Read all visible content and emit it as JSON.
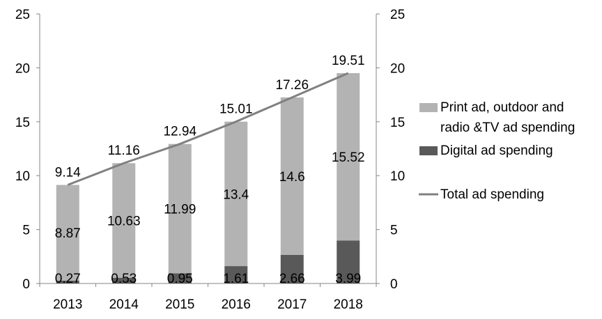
{
  "chart_data": {
    "type": "bar",
    "categories": [
      "2013",
      "2014",
      "2015",
      "2016",
      "2017",
      "2018"
    ],
    "series": [
      {
        "name": "Digital ad spending",
        "kind": "bar",
        "stacked": true,
        "color": "#595959",
        "values": [
          0.27,
          0.53,
          0.95,
          1.61,
          2.66,
          3.99
        ],
        "labels": [
          "0.27",
          "0.53",
          "0.95",
          "1.61",
          "2.66",
          "3.99"
        ]
      },
      {
        "name": "Print ad, outdoor and radio &TV ad spending",
        "kind": "bar",
        "stacked": true,
        "color": "#b3b3b3",
        "values": [
          8.87,
          10.63,
          11.99,
          13.4,
          14.6,
          15.52
        ],
        "labels": [
          "8.87",
          "10.63",
          "11.99",
          "13.4",
          "14.6",
          "15.52"
        ]
      },
      {
        "name": "Total ad spending",
        "kind": "line",
        "color": "#808080",
        "values": [
          9.14,
          11.16,
          12.94,
          15.01,
          17.26,
          19.51
        ],
        "labels": [
          "9.14",
          "11.16",
          "12.94",
          "15.01",
          "17.26",
          "19.51"
        ]
      }
    ],
    "legend": {
      "placement": "right",
      "entries": [
        {
          "lines": [
            "Print ad, outdoor and",
            "radio &TV ad spending"
          ],
          "marker": "box",
          "color": "#b3b3b3"
        },
        {
          "lines": [
            "Digital ad spending"
          ],
          "marker": "box",
          "color": "#595959"
        },
        {
          "lines": [
            "Total ad spending"
          ],
          "marker": "line",
          "color": "#808080"
        }
      ]
    },
    "y_ticks": [
      "0",
      "5",
      "10",
      "15",
      "20",
      "25"
    ],
    "ylim": [
      0,
      25
    ],
    "y2_ticks": [
      "0",
      "5",
      "10",
      "15",
      "20",
      "25"
    ],
    "y2lim": [
      0,
      25
    ],
    "grid": false
  }
}
